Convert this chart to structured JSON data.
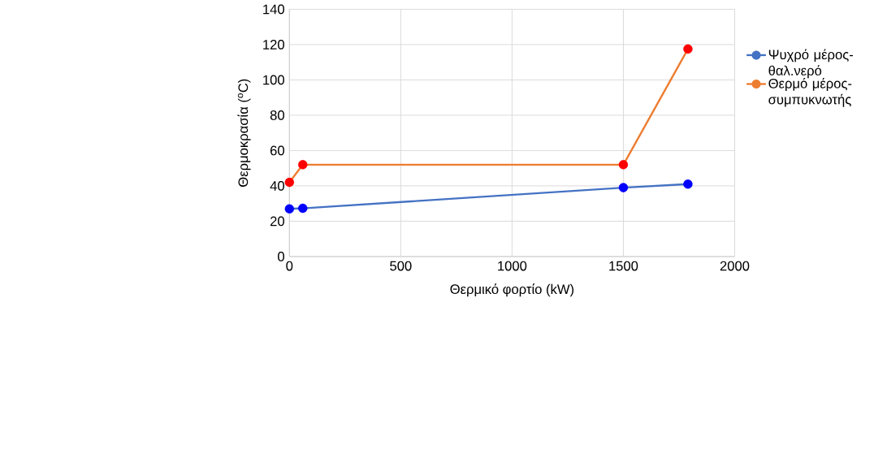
{
  "chart_data": {
    "type": "line",
    "xlabel": "Θερμικό φορτίο (kW)",
    "ylabel": "Θερμοκρασία ($^{o}$C)",
    "series": [
      {
        "name": "Ψυχρό μέρος-θαλ.νερό",
        "color": "#4472c4",
        "colors": [
          "#0000ff",
          "#0000ff",
          "#0000ff",
          "#0000ff"
        ],
        "x": [
          0,
          60,
          1500,
          1790
        ],
        "values": [
          27,
          27.3,
          39,
          41
        ]
      },
      {
        "name": "Θερμό μέρος-συμπυκνωτής",
        "color": "#ed7d31",
        "colors": [
          "#ff0000",
          "#ff0000",
          "#ff0000",
          "#ff0000"
        ],
        "x": [
          0,
          60,
          1500,
          1790
        ],
        "values": [
          42,
          52,
          52,
          117.5
        ]
      }
    ],
    "xlim": [
      0,
      2000
    ],
    "xticks": [
      0,
      500,
      1000,
      1500,
      2000
    ],
    "ylim": [
      0,
      140
    ],
    "yticks": [
      0,
      20,
      40,
      60,
      80,
      100,
      120,
      140
    ],
    "grid": true,
    "legend": "right",
    "marker": "circle",
    "line_style": "solid"
  }
}
